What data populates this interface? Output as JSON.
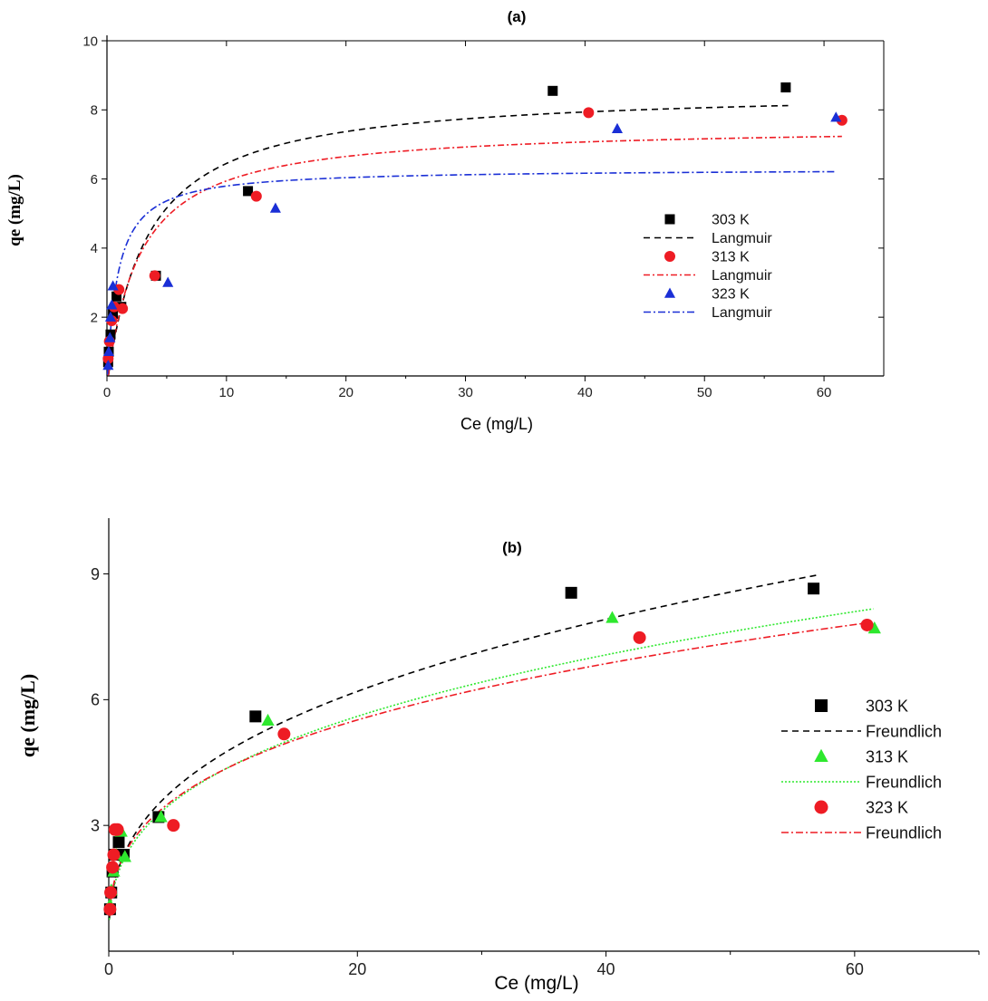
{
  "chart_data": [
    {
      "panel": "a",
      "type": "scatter",
      "title": "(a)",
      "xlabel": "Ce (mg/L)",
      "ylabel": "qe (mg/L)",
      "xlim": [
        0,
        65
      ],
      "ylim": [
        0.3,
        10
      ],
      "xticks": [
        0,
        10,
        20,
        30,
        40,
        50,
        60
      ],
      "yticks": [
        2,
        4,
        6,
        8,
        10
      ],
      "legend_position": "center-right",
      "series": [
        {
          "name": "303 K",
          "kind": "points",
          "marker": "square",
          "color": "#000000",
          "x": [
            0.1,
            0.15,
            0.3,
            0.5,
            0.8,
            1.2,
            4.1,
            11.8,
            37.3,
            56.8
          ],
          "y": [
            0.7,
            1.0,
            1.5,
            2.1,
            2.6,
            2.3,
            3.2,
            5.65,
            8.55,
            8.65
          ]
        },
        {
          "name": "Langmuir",
          "kind": "curve",
          "dash": "7,5",
          "color": "#000000",
          "model": "langmuir",
          "qmax": 8.6,
          "KL": 0.3,
          "x_range": [
            0.05,
            57
          ]
        },
        {
          "name": "313 K",
          "kind": "points",
          "marker": "circle",
          "color": "#ee1c24",
          "x": [
            0.1,
            0.2,
            0.4,
            0.6,
            1.0,
            1.3,
            4.0,
            12.5,
            40.3,
            61.5
          ],
          "y": [
            0.8,
            1.3,
            1.9,
            2.3,
            2.8,
            2.25,
            3.2,
            5.5,
            7.92,
            7.7
          ]
        },
        {
          "name": "Langmuir",
          "kind": "curve",
          "dash": "7,3,2,3",
          "color": "#ee1c24",
          "model": "langmuir",
          "qmax": 7.55,
          "KL": 0.37,
          "x_range": [
            0.05,
            61.5
          ]
        },
        {
          "name": "323 K",
          "kind": "points",
          "marker": "triangle",
          "color": "#1a2fd6",
          "x": [
            0.1,
            0.15,
            0.25,
            0.3,
            0.4,
            0.5,
            5.1,
            14.1,
            42.7,
            61.0
          ],
          "y": [
            0.6,
            1.0,
            1.4,
            2.0,
            2.35,
            2.9,
            3.0,
            5.15,
            7.45,
            7.78
          ]
        },
        {
          "name": "Langmuir",
          "kind": "curve",
          "dash": "8,3,2,3",
          "color": "#1a2fd6",
          "model": "langmuir",
          "qmax": 6.3,
          "KL": 1.15,
          "x_range": [
            0.05,
            61
          ]
        }
      ]
    },
    {
      "panel": "b",
      "type": "scatter",
      "title": "(b)",
      "xlabel": "Ce (mg/L)",
      "ylabel": "qe (mg/L)",
      "xlim": [
        0,
        70
      ],
      "ylim": [
        0,
        10.2
      ],
      "xticks": [
        0,
        20,
        40,
        60
      ],
      "xticks_minor": [
        10,
        30,
        50,
        70
      ],
      "yticks": [
        3,
        6,
        9
      ],
      "legend_position": "center-right",
      "series": [
        {
          "name": "303 K",
          "kind": "points",
          "marker": "square",
          "color": "#000000",
          "x": [
            0.1,
            0.2,
            0.3,
            0.5,
            0.8,
            1.2,
            4.0,
            11.8,
            37.2,
            56.7
          ],
          "y": [
            1.0,
            1.4,
            1.9,
            2.3,
            2.6,
            2.3,
            3.2,
            5.6,
            8.55,
            8.65
          ]
        },
        {
          "name": "Freundlich",
          "kind": "curve",
          "dash": "7,5",
          "color": "#000000",
          "model": "freundlich",
          "KF": 2.15,
          "n": 2.83,
          "x_range": [
            0.05,
            57
          ]
        },
        {
          "name": "313 K",
          "kind": "points",
          "marker": "triangle",
          "color": "#2ee82e",
          "x": [
            0.1,
            0.2,
            0.4,
            0.6,
            1.0,
            1.3,
            4.2,
            12.8,
            40.5,
            61.6
          ],
          "y": [
            1.1,
            1.45,
            1.9,
            2.3,
            2.85,
            2.25,
            3.2,
            5.5,
            7.95,
            7.7
          ]
        },
        {
          "name": "Freundlich",
          "kind": "curve",
          "dash": "2,2",
          "color": "#2ee82e",
          "model": "freundlich",
          "KF": 2.05,
          "n": 2.98,
          "x_range": [
            0.05,
            61.5
          ]
        },
        {
          "name": "323 K",
          "kind": "points",
          "marker": "circle",
          "color": "#ee1c24",
          "x": [
            0.1,
            0.15,
            0.3,
            0.4,
            0.5,
            0.7,
            5.2,
            14.1,
            42.7,
            61.0
          ],
          "y": [
            1.0,
            1.4,
            2.0,
            2.3,
            2.9,
            2.9,
            3.0,
            5.18,
            7.48,
            7.78
          ]
        },
        {
          "name": "Freundlich",
          "kind": "curve",
          "dash": "8,3,2,3",
          "color": "#ee1c24",
          "model": "freundlich",
          "KF": 2.15,
          "n": 3.18,
          "x_range": [
            0.05,
            61
          ]
        }
      ]
    }
  ]
}
